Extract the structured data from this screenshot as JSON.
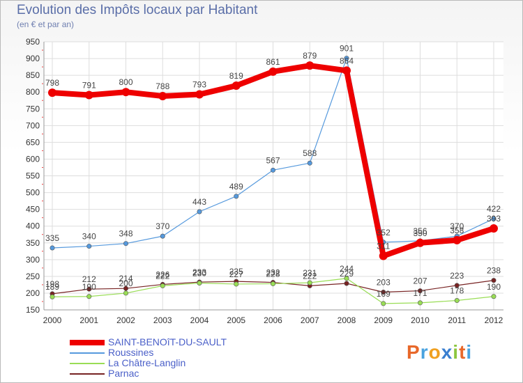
{
  "header": {
    "title": "Evolution des Impôts locaux par Habitant",
    "subtitle": "(en € et par an)"
  },
  "brand": {
    "letters": [
      "P",
      "r",
      "o",
      "x",
      "i",
      "t",
      "i"
    ],
    "colors": [
      "#e8682a",
      "#4aa3df",
      "#f0a020",
      "#3a7fd0",
      "#8cc63f",
      "#e8682a",
      "#4aa3df"
    ]
  },
  "chart_data": {
    "type": "line",
    "x": [
      "2000",
      "2001",
      "2002",
      "2003",
      "2004",
      "2005",
      "2006",
      "2007",
      "2008",
      "2009",
      "2010",
      "2011",
      "2012"
    ],
    "ylim": [
      150,
      950
    ],
    "yticks": [
      150,
      200,
      250,
      300,
      350,
      400,
      450,
      500,
      550,
      600,
      650,
      700,
      750,
      800,
      850,
      900,
      950
    ],
    "grid": true,
    "legend_position": "bottom-left",
    "series": [
      {
        "name": "SAINT-BENOîT-DU-SAULT",
        "color": "#ee0000",
        "values": [
          798,
          791,
          800,
          788,
          793,
          819,
          861,
          879,
          864,
          311,
          350,
          358,
          393
        ],
        "labels": [
          "798",
          "791",
          "800",
          "788",
          "793",
          "819",
          "861",
          "879",
          "864",
          "311",
          "350",
          "358",
          "393"
        ]
      },
      {
        "name": "Roussines",
        "color": "#5599dd",
        "values": [
          335,
          340,
          348,
          370,
          443,
          489,
          567,
          588,
          901,
          352,
          356,
          370,
          422
        ],
        "labels": [
          "335",
          "340",
          "348",
          "370",
          "443",
          "489",
          "567",
          "588",
          "901",
          "352",
          "356",
          "370",
          "422"
        ]
      },
      {
        "name": "La Châtre-Langlin",
        "color": "#99dd55",
        "values": [
          189,
          190,
          200,
          222,
          230,
          227,
          228,
          231,
          244,
          169,
          171,
          178,
          190
        ],
        "labels": [
          "189",
          "190",
          "200",
          "222",
          "230",
          "227",
          "228",
          "231",
          "244",
          "169",
          "171",
          "178",
          "190"
        ]
      },
      {
        "name": "Parnac",
        "color": "#772222",
        "values": [
          198,
          212,
          214,
          226,
          233,
          235,
          232,
          222,
          229,
          203,
          207,
          223,
          238
        ],
        "labels": [
          "198",
          "212",
          "214",
          "226",
          "233",
          "235",
          "232",
          "222",
          "229",
          "203",
          "207",
          "223",
          "238"
        ]
      }
    ]
  }
}
